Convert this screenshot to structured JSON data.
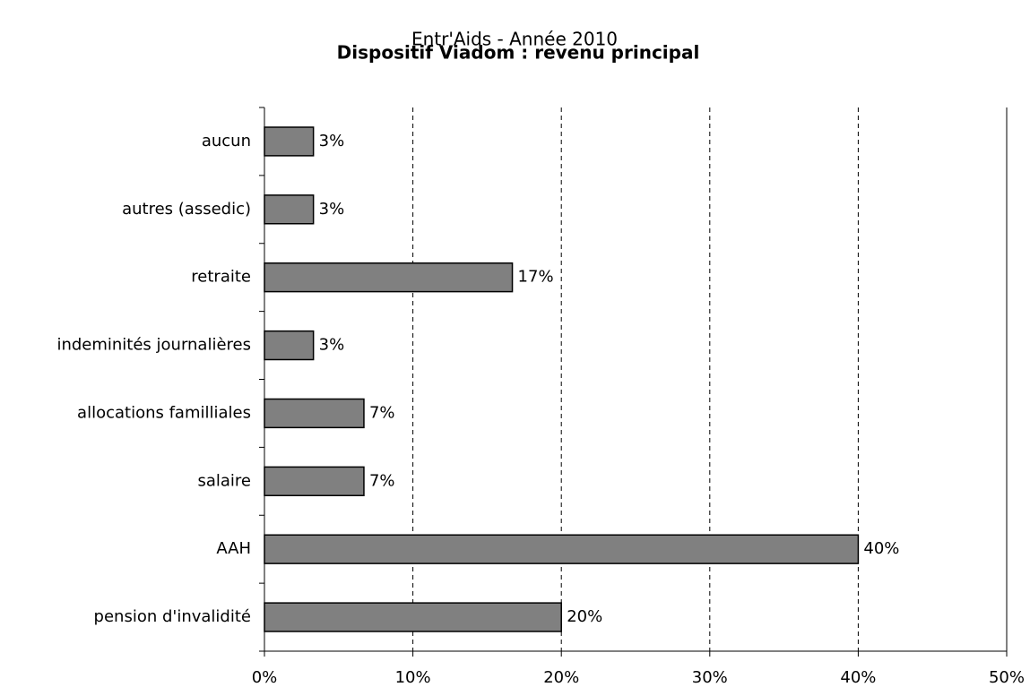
{
  "chart_data": {
    "type": "hbar",
    "title": "Entr'Aids - Année 2010",
    "subtitle": "Dispositif Viadom : revenu principal",
    "categories": [
      "aucun",
      "autres (assedic)",
      "retraite",
      "indeminités journalières",
      "allocations familliales",
      "salaire",
      "AAH",
      "pension d'invalidité"
    ],
    "values": [
      3.3,
      3.3,
      16.7,
      3.3,
      6.7,
      6.7,
      40,
      20
    ],
    "value_labels": [
      "3%",
      "3%",
      "17%",
      "3%",
      "7%",
      "7%",
      "40%",
      "20%"
    ],
    "color": "#808080",
    "xlim": [
      0,
      50
    ],
    "xticks": [
      {
        "value": 0,
        "label": "0%"
      },
      {
        "value": 10,
        "label": "10%"
      },
      {
        "value": 20,
        "label": "20%"
      },
      {
        "value": 30,
        "label": "30%"
      },
      {
        "value": 40,
        "label": "40%"
      },
      {
        "value": 50,
        "label": "50%"
      }
    ],
    "grid": true
  }
}
